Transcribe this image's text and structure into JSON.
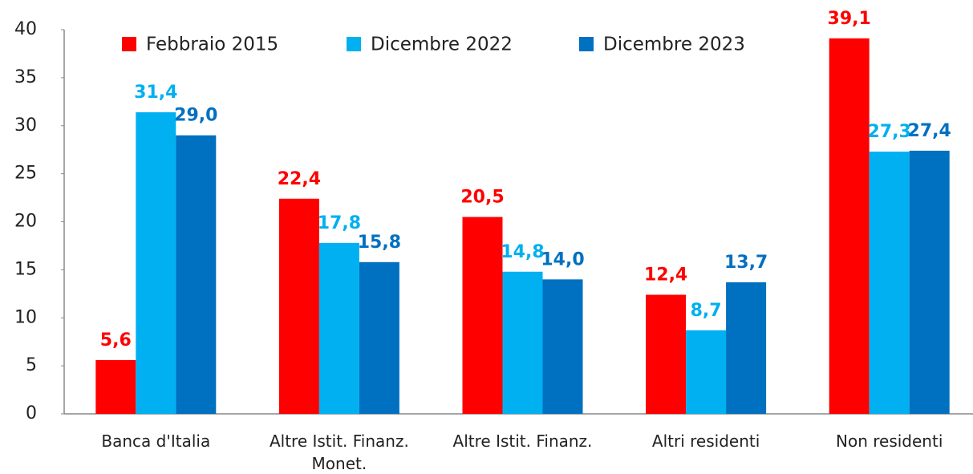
{
  "chart_data": {
    "type": "bar",
    "categories": [
      "Banca d'Italia",
      "Altre Istit. Finanz. Monet.",
      "Altre Istit. Finanz.",
      "Altri residenti",
      "Non residenti"
    ],
    "series": [
      {
        "name": "Febbraio 2015",
        "color": "#ff0000",
        "values": [
          5.6,
          22.4,
          20.5,
          12.4,
          39.1
        ],
        "value_labels": [
          "5,6",
          "22,4",
          "20,5",
          "12,4",
          "39,1"
        ]
      },
      {
        "name": "Dicembre 2022",
        "color": "#00b0f0",
        "values": [
          31.4,
          17.8,
          14.8,
          8.7,
          27.3
        ],
        "value_labels": [
          "31,4",
          "17,8",
          "14,8",
          "8,7",
          "27,3"
        ]
      },
      {
        "name": "Dicembre 2023",
        "color": "#0070c0",
        "values": [
          29.0,
          15.8,
          14.0,
          13.7,
          27.4
        ],
        "value_labels": [
          "29,0",
          "15,8",
          "14,0",
          "13,7",
          "27,4"
        ]
      }
    ],
    "ylim": [
      0,
      40
    ],
    "yticks": [
      0,
      5,
      10,
      15,
      20,
      25,
      30,
      35,
      40
    ],
    "grid": false,
    "legend": "top"
  }
}
